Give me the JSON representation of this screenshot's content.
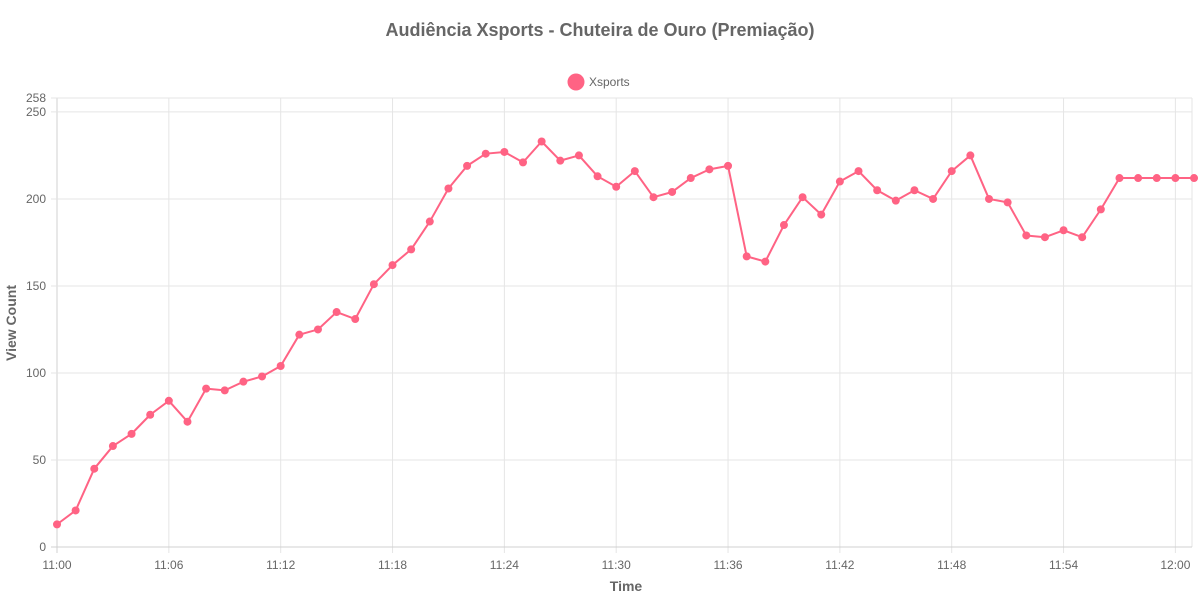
{
  "chart_data": {
    "type": "line",
    "title": "Audiência Xsports - Chuteira de Ouro (Premiação)",
    "xlabel": "Time",
    "ylabel": "View Count",
    "x_tick_labels": [
      "11:00",
      "11:06",
      "11:12",
      "11:18",
      "11:24",
      "11:30",
      "11:36",
      "11:42",
      "11:48",
      "11:54",
      "12:00"
    ],
    "y_tick_labels": [
      "0",
      "50",
      "100",
      "150",
      "200",
      "250",
      "258"
    ],
    "ylim": [
      0,
      258
    ],
    "legend_position": "top",
    "grid": true,
    "colors": {
      "series": "#ff6384",
      "series_fill": "#ff6384"
    },
    "series": [
      {
        "name": "Xsports",
        "x": [
          "11:00",
          "11:01",
          "11:02",
          "11:03",
          "11:04",
          "11:05",
          "11:06",
          "11:07",
          "11:08",
          "11:09",
          "11:10",
          "11:11",
          "11:12",
          "11:13",
          "11:14",
          "11:15",
          "11:16",
          "11:17",
          "11:18",
          "11:19",
          "11:20",
          "11:21",
          "11:22",
          "11:23",
          "11:24",
          "11:25",
          "11:26",
          "11:27",
          "11:28",
          "11:29",
          "11:30",
          "11:31",
          "11:32",
          "11:33",
          "11:34",
          "11:35",
          "11:36",
          "11:37",
          "11:38",
          "11:39",
          "11:40",
          "11:41",
          "11:42",
          "11:43",
          "11:44",
          "11:45",
          "11:46",
          "11:47",
          "11:48",
          "11:49",
          "11:50",
          "11:51",
          "11:52",
          "11:53",
          "11:54",
          "11:55",
          "11:56",
          "11:57",
          "11:58",
          "11:59",
          "12:00",
          "12:01"
        ],
        "values": [
          13,
          21,
          45,
          58,
          65,
          76,
          84,
          72,
          91,
          90,
          95,
          98,
          104,
          122,
          125,
          135,
          131,
          151,
          162,
          171,
          187,
          206,
          219,
          226,
          227,
          221,
          233,
          222,
          225,
          213,
          207,
          216,
          201,
          204,
          212,
          217,
          219,
          167,
          164,
          185,
          201,
          191,
          210,
          216,
          205,
          199,
          205,
          200,
          216,
          225,
          200,
          198,
          179,
          178,
          182,
          178,
          194,
          212,
          212,
          212,
          212,
          212
        ]
      }
    ]
  }
}
